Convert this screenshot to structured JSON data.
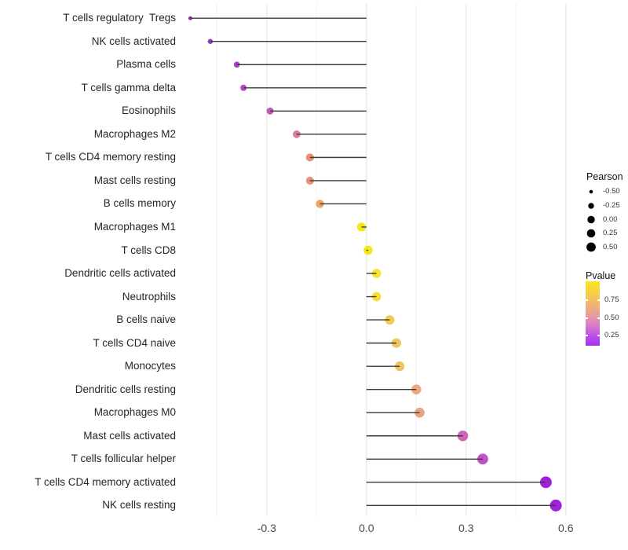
{
  "figure": {
    "background": "#ffffff",
    "stem_color": "#3a3a3a",
    "grid_major_color": "#e3e3e3",
    "grid_minor_color": "#f0f0f0"
  },
  "chart_data": {
    "type": "scatter",
    "variant": "lollipop",
    "title": "",
    "xlabel": "",
    "ylabel": "",
    "categories": [
      "T cells regulatory  Tregs",
      "NK cells activated",
      "Plasma cells",
      "T cells gamma delta",
      "Eosinophils",
      "Macrophages M2",
      "T cells CD4 memory resting",
      "Mast cells resting",
      "B cells memory",
      "Macrophages M1",
      "T cells CD8",
      "Dendritic cells activated",
      "Neutrophils",
      "B cells naive",
      "T cells CD4 naive",
      "Monocytes",
      "Dendritic cells resting",
      "Macrophages M0",
      "Mast cells activated",
      "T cells follicular helper",
      "T cells CD4 memory activated",
      "NK cells resting"
    ],
    "series": [
      {
        "name": "Pearson",
        "values": [
          -0.53,
          -0.47,
          -0.39,
          -0.37,
          -0.29,
          -0.21,
          -0.17,
          -0.17,
          -0.14,
          -0.015,
          0.005,
          0.03,
          0.03,
          0.07,
          0.09,
          0.1,
          0.15,
          0.16,
          0.29,
          0.35,
          0.54,
          0.57
        ]
      }
    ],
    "point_colors": [
      "#8A2BAE",
      "#9838C6",
      "#A840CA",
      "#B34AC4",
      "#C357BC",
      "#DB7D96",
      "#E69078",
      "#E69078",
      "#ECA464",
      "#F6E718",
      "#F6E718",
      "#F4E52C",
      "#F2E038",
      "#EFCC52",
      "#EEC85A",
      "#EDC45E",
      "#EBA882",
      "#EAA37E",
      "#CD66B6",
      "#BF52C6",
      "#A121DB",
      "#A121DB"
    ],
    "xlim": [
      -0.555,
      0.65
    ],
    "x_ticks": [
      -0.3,
      0.0,
      0.3,
      0.6
    ],
    "x_tick_labels": [
      "-0.3",
      "0.0",
      "0.3",
      "0.6"
    ],
    "grid_major": [
      -0.3,
      0.0,
      0.3,
      0.6
    ],
    "grid_minor": [
      -0.45,
      -0.15,
      0.15,
      0.45
    ],
    "legend_position": "right",
    "legends": {
      "size": {
        "title": "Pearson",
        "labels": [
          "-0.50",
          "-0.25",
          "0.00",
          "0.25",
          "0.50"
        ],
        "values": [
          -0.5,
          -0.25,
          0.0,
          0.25,
          0.5
        ],
        "dot_color": "#000000"
      },
      "color": {
        "title": "Pvalue",
        "labels": [
          "0.75",
          "0.50",
          "0.25"
        ],
        "values": [
          0.75,
          0.5,
          0.25
        ],
        "gradient_top_color": "#FBE621",
        "gradient_bottom_color": "#A52FF2"
      }
    }
  }
}
